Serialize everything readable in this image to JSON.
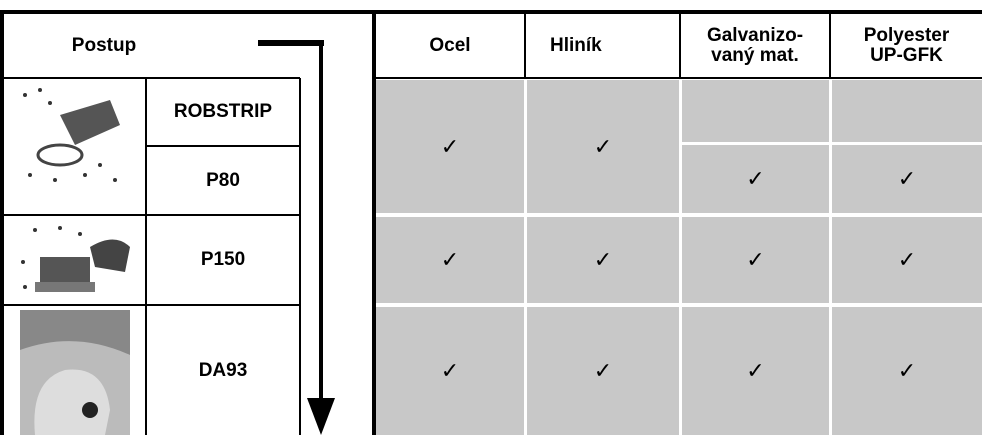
{
  "header": {
    "process": "Postup",
    "columns": [
      "Ocel",
      "Hliník",
      "Galvanizo-\nvaný mat.",
      "Polyester\nUP-GFK"
    ]
  },
  "rows": [
    {
      "process": "ROBSTRIP",
      "checks": [
        "✓",
        "✓"
      ]
    },
    {
      "process": "P80",
      "checks": [
        "✓",
        "✓"
      ]
    },
    {
      "process": "P150",
      "checks": [
        "✓",
        "✓",
        "✓",
        "✓"
      ]
    },
    {
      "process": "DA93",
      "checks": [
        "✓",
        "✓",
        "✓",
        "✓"
      ]
    }
  ]
}
